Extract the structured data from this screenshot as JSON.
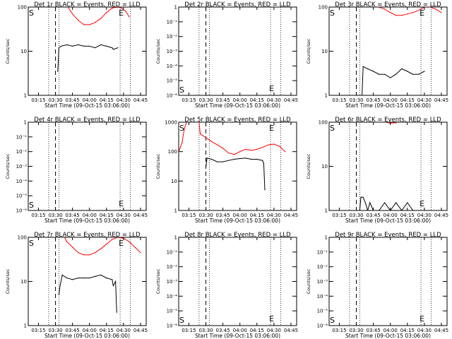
{
  "figure": {
    "xlabel": "Start Time (09-Oct-15 03:06:00)",
    "ylabel": "Counts/sec",
    "xticks": [
      "03:15",
      "03:30",
      "03:45",
      "04:00",
      "04:15",
      "04:30",
      "04:45"
    ]
  },
  "chart_data": [
    {
      "type": "line",
      "title": "Det 1r BLACK = Events, RED = LLD",
      "ylim": [
        1,
        100
      ],
      "yticks": [
        "1",
        "10",
        "100"
      ],
      "markers": [
        "S",
        "E"
      ],
      "series": [
        {
          "name": "Events",
          "color": "#000000",
          "x": [
            "03:32",
            "03:33",
            "03:35",
            "03:40",
            "03:45",
            "03:50",
            "03:55",
            "04:00",
            "04:05",
            "04:10",
            "04:15",
            "04:20",
            "04:21",
            "04:25"
          ],
          "y": [
            3.5,
            12,
            13,
            14,
            13,
            14,
            13,
            13,
            12,
            14,
            13,
            12,
            11,
            12
          ]
        },
        {
          "name": "LLD",
          "color": "#ff0000",
          "x": [
            "03:41",
            "03:45",
            "03:50",
            "03:55",
            "04:00",
            "04:05",
            "04:10",
            "04:15",
            "04:20",
            "04:25",
            "04:28",
            "04:32",
            "04:35"
          ],
          "y": [
            100,
            70,
            50,
            40,
            40,
            45,
            55,
            75,
            95,
            100,
            95,
            80,
            60
          ]
        }
      ]
    },
    {
      "type": "line",
      "title": "Det 2r BLACK = Events, RED = LLD",
      "ylim": [
        1e-06,
        1
      ],
      "yticks": [
        "1",
        "10⁻¹",
        "10⁻²",
        "10⁻³",
        "10⁻⁴",
        "10⁻⁵",
        "10⁻⁶"
      ],
      "markers": [
        "S",
        "E"
      ],
      "series": []
    },
    {
      "type": "line",
      "title": "Det 3r BLACK = Events, RED = LLD",
      "ylim": [
        1,
        100
      ],
      "yticks": [
        "1",
        "10",
        "100"
      ],
      "markers": [
        "S",
        "E"
      ],
      "series": [
        {
          "name": "Events",
          "color": "#000000",
          "x": [
            "03:35",
            "03:36",
            "03:40",
            "03:45",
            "03:50",
            "03:55",
            "04:00",
            "04:05",
            "04:10",
            "04:15",
            "04:20",
            "04:25",
            "04:30"
          ],
          "y": [
            1,
            4.5,
            4,
            3.5,
            3,
            3,
            2.5,
            3,
            4,
            3.5,
            3,
            3,
            3.5
          ]
        },
        {
          "name": "LLD",
          "color": "#ff0000",
          "x": [
            "03:50",
            "03:55",
            "04:00",
            "04:05",
            "04:10",
            "04:15",
            "04:20",
            "04:25",
            "04:30",
            "04:35",
            "04:40",
            "04:45"
          ],
          "y": [
            100,
            90,
            75,
            65,
            65,
            70,
            75,
            85,
            100,
            100,
            90,
            75
          ]
        }
      ]
    },
    {
      "type": "line",
      "title": "Det 4r BLACK = Events, RED = LLD",
      "ylim": [
        1e-06,
        1
      ],
      "yticks": [
        "1",
        "10⁻¹",
        "10⁻²",
        "10⁻³",
        "10⁻⁴",
        "10⁻⁵",
        "10⁻⁶"
      ],
      "markers": [
        "S",
        "E"
      ],
      "series": []
    },
    {
      "type": "line",
      "title": "Det 5r BLACK = Events, RED = LLD",
      "ylim": [
        1,
        1000
      ],
      "yticks": [
        "1",
        "10",
        "100",
        "1000"
      ],
      "markers": [
        "S",
        "E"
      ],
      "series": [
        {
          "name": "Events",
          "color": "#000000",
          "x": [
            "03:30",
            "03:31",
            "03:35",
            "03:40",
            "03:45",
            "03:50",
            "03:55",
            "04:00",
            "04:05",
            "04:10",
            "04:15",
            "04:20",
            "04:21",
            "04:22"
          ],
          "y": [
            30,
            60,
            55,
            45,
            45,
            50,
            55,
            58,
            60,
            55,
            55,
            50,
            40,
            5
          ]
        },
        {
          "name": "LLD",
          "color": "#ff0000",
          "x": [
            "03:06",
            "03:09",
            "03:11",
            "03:13",
            "03:15",
            "03:20",
            "03:24",
            "03:25",
            "03:30",
            "03:35",
            "03:40",
            "03:45",
            "03:50",
            "03:55",
            "04:00",
            "04:05",
            "04:10",
            "04:15",
            "04:20",
            "04:25",
            "04:30",
            "04:35",
            "04:40"
          ],
          "y": [
            100,
            200,
            600,
            1000,
            1000,
            1000,
            1000,
            400,
            300,
            220,
            170,
            130,
            90,
            80,
            100,
            120,
            110,
            120,
            140,
            170,
            180,
            150,
            100
          ]
        }
      ]
    },
    {
      "type": "line",
      "title": "Det 6r BLACK = Events, RED = LLD",
      "ylim": [
        1,
        100
      ],
      "yticks": [
        "1",
        "10",
        "100"
      ],
      "markers": [
        "S",
        "E"
      ],
      "series": [
        {
          "name": "Events",
          "color": "#000000",
          "x": [
            "03:33",
            "03:34",
            "03:36",
            "03:38",
            "03:40",
            "03:42",
            "03:45",
            "03:50",
            "03:55",
            "04:00",
            "04:05",
            "04:10",
            "04:15",
            "04:20",
            "04:25"
          ],
          "y": [
            1,
            2,
            2,
            1.5,
            1,
            1.5,
            1,
            1,
            1.5,
            1,
            1.5,
            1,
            1.5,
            1,
            1
          ]
        },
        {
          "name": "LLD",
          "color": "#ff0000",
          "x": [
            "03:56",
            "04:00",
            "04:05",
            "04:06"
          ],
          "y": [
            100,
            95,
            97,
            100
          ]
        }
      ]
    },
    {
      "type": "line",
      "title": "Det 7r BLACK = Events, RED = LLD",
      "ylim": [
        1,
        100
      ],
      "yticks": [
        "1",
        "10",
        "100"
      ],
      "markers": [
        "S",
        "E"
      ],
      "series": [
        {
          "name": "Events",
          "color": "#000000",
          "x": [
            "03:33",
            "03:34",
            "03:36",
            "03:40",
            "03:45",
            "03:50",
            "03:55",
            "04:00",
            "04:05",
            "04:10",
            "04:15",
            "04:20",
            "04:21",
            "04:23",
            "04:24"
          ],
          "y": [
            5,
            8,
            14,
            12,
            11,
            12,
            12,
            12,
            13,
            14,
            12,
            11,
            8,
            10,
            2
          ]
        },
        {
          "name": "LLD",
          "color": "#ff0000",
          "x": [
            "03:38",
            "03:40",
            "03:45",
            "03:50",
            "03:55",
            "04:00",
            "04:05",
            "04:10",
            "04:15",
            "04:20",
            "04:25",
            "04:30",
            "04:35",
            "04:40",
            "04:45"
          ],
          "y": [
            100,
            80,
            60,
            45,
            40,
            40,
            45,
            55,
            70,
            90,
            100,
            95,
            80,
            60,
            45
          ]
        }
      ]
    },
    {
      "type": "line",
      "title": "Det 8r BLACK = Events, RED = LLD",
      "ylim": [
        1e-06,
        1
      ],
      "yticks": [
        "1",
        "10⁻¹",
        "10⁻²",
        "10⁻³",
        "10⁻⁴",
        "10⁻⁵",
        "10⁻⁶"
      ],
      "markers": [
        "S",
        "E"
      ],
      "series": []
    },
    {
      "type": "line",
      "title": "Det 9r BLACK = Events, RED = LLD",
      "ylim": [
        1e-06,
        1
      ],
      "yticks": [
        "1",
        "10⁻¹",
        "10⁻²",
        "10⁻³",
        "10⁻⁴",
        "10⁻⁵",
        "10⁻⁶"
      ],
      "markers": [
        "S",
        "E"
      ],
      "series": []
    }
  ]
}
